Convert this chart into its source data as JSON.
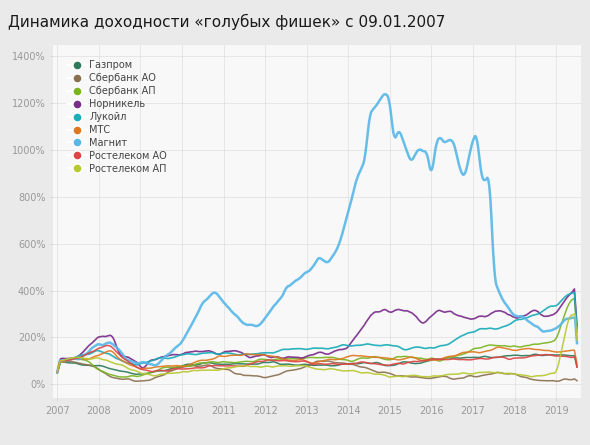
{
  "title": "Динамика доходности «голубых фишек» с 09.01.2007",
  "title_bg": "#4fc3cb",
  "bg_color": "#eaeaea",
  "plot_bg": "#f8f8f8",
  "ylabel_ticks": [
    "0%",
    "200%",
    "400%",
    "600%",
    "800%",
    "1000%",
    "1200%",
    "1400%"
  ],
  "ytick_vals": [
    0,
    200,
    400,
    600,
    800,
    1000,
    1200,
    1400
  ],
  "xlim_start": 2006.9,
  "xlim_end": 2019.6,
  "ylim_min": -60,
  "ylim_max": 1450,
  "series": [
    {
      "name": "Газпром",
      "color": "#2d7a5a"
    },
    {
      "name": "Сбербанк АО",
      "color": "#8b7050"
    },
    {
      "name": "Сбербанк АП",
      "color": "#7ab520"
    },
    {
      "name": "Норникель",
      "color": "#7b2d8b"
    },
    {
      "name": "Лукойл",
      "color": "#1aacb8"
    },
    {
      "name": "МТС",
      "color": "#e07820"
    },
    {
      "name": "Магнит",
      "color": "#5ab8e8"
    },
    {
      "name": "Ростелеком АО",
      "color": "#e04545"
    },
    {
      "name": "Ростелеком АП",
      "color": "#b8c830"
    }
  ],
  "footer_bg": "#4fc3cb",
  "grid_color": "#d8d8d8",
  "axis_label_color": "#999999"
}
